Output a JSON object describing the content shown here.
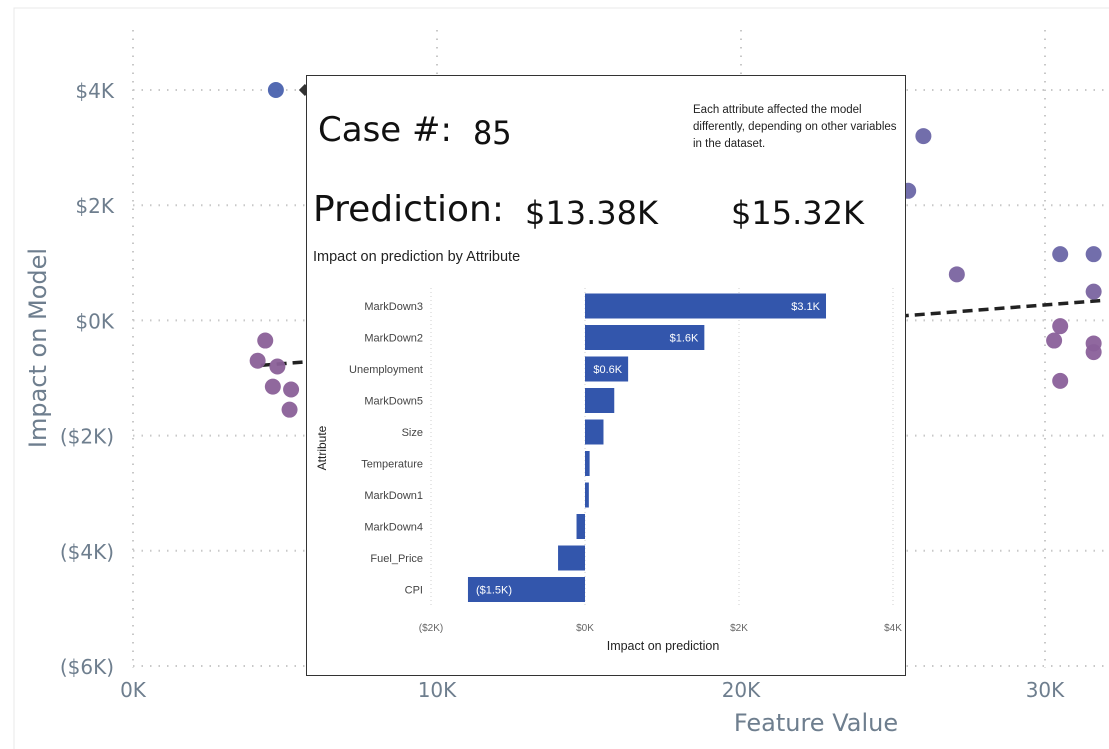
{
  "scatter": {
    "xlabel": "Feature Value",
    "ylabel": "Impact on Model",
    "x_ticks": [
      "0K",
      "10K",
      "20K",
      "30K"
    ],
    "y_ticks": [
      "$4K",
      "$2K",
      "$0K",
      "($2K)",
      "($4K)",
      "($6K)"
    ],
    "colors": {
      "axis_text": "#6e7e8e",
      "grid": "#c8c8c8",
      "trend": "#222222"
    }
  },
  "tooltip": {
    "case_label": "Case #:",
    "case_value": "85",
    "prediction_label": "Prediction:",
    "prediction_value_1": "$13.38K",
    "prediction_value_2": "$15.32K",
    "note": "Each attribute affected the model differently, depending on other variables in the dataset.",
    "bar_title": "Impact on prediction by Attribute",
    "bar_xlabel": "Impact on prediction",
    "bar_ylabel": "Attribute",
    "bar_x_ticks": [
      "($2K)",
      "$0K",
      "$2K",
      "$4K"
    ],
    "bar_color": "#3356ac"
  },
  "chart_data": [
    {
      "type": "scatter",
      "xlabel": "Feature Value",
      "ylabel": "Impact on Model",
      "xlim": [
        0,
        32000
      ],
      "ylim": [
        -6000,
        4000
      ],
      "grid": true,
      "points": [
        {
          "x": 4700,
          "y": 4000,
          "color": "#4a62ae"
        },
        {
          "x": 26000,
          "y": 3200,
          "color": "#6a66a6"
        },
        {
          "x": 25500,
          "y": 2250,
          "color": "#6a66a6"
        },
        {
          "x": 27100,
          "y": 800,
          "color": "#7a64a0"
        },
        {
          "x": 30500,
          "y": 1150,
          "color": "#6a66a6"
        },
        {
          "x": 31600,
          "y": 1150,
          "color": "#6a66a6"
        },
        {
          "x": 31600,
          "y": 500,
          "color": "#7a64a0"
        },
        {
          "x": 30500,
          "y": -100,
          "color": "#8a609a"
        },
        {
          "x": 30300,
          "y": -350,
          "color": "#8a609a"
        },
        {
          "x": 31600,
          "y": -400,
          "color": "#8a609a"
        },
        {
          "x": 31600,
          "y": -550,
          "color": "#8a609a"
        },
        {
          "x": 30500,
          "y": -1050,
          "color": "#8a609a"
        },
        {
          "x": 4350,
          "y": -350,
          "color": "#8a6098"
        },
        {
          "x": 4100,
          "y": -700,
          "color": "#8a6098"
        },
        {
          "x": 4750,
          "y": -800,
          "color": "#8a6098"
        },
        {
          "x": 4600,
          "y": -1150,
          "color": "#8a6098"
        },
        {
          "x": 5200,
          "y": -1200,
          "color": "#8a6098"
        },
        {
          "x": 5150,
          "y": -1550,
          "color": "#8a6098"
        }
      ],
      "trend_line": [
        {
          "x": 4200,
          "y": -780
        },
        {
          "x": 32000,
          "y": 350
        }
      ]
    },
    {
      "type": "bar",
      "orientation": "horizontal",
      "title": "Impact on prediction by Attribute",
      "xlabel": "Impact on prediction",
      "ylabel": "Attribute",
      "xlim": [
        -2000,
        4000
      ],
      "categories": [
        "MarkDown3",
        "MarkDown2",
        "Unemployment",
        "MarkDown5",
        "Size",
        "Temperature",
        "MarkDown1",
        "MarkDown4",
        "Fuel_Price",
        "CPI"
      ],
      "values": [
        3130,
        1550,
        560,
        380,
        240,
        60,
        50,
        -110,
        -350,
        -1520
      ],
      "data_labels": [
        "$3.1K",
        "$1.6K",
        "$0.6K",
        "",
        "",
        "",
        "",
        "",
        "",
        "($1.5K)"
      ]
    }
  ]
}
